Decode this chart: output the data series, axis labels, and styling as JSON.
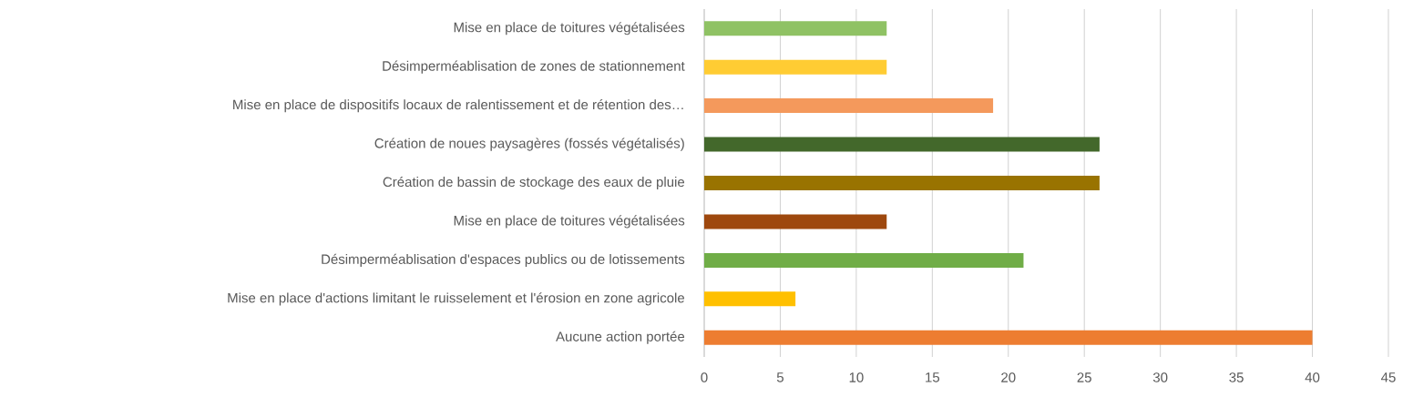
{
  "chart_data": {
    "type": "bar",
    "orientation": "horizontal",
    "categories": [
      "Mise en place de toitures végétalisées",
      "Désimperméablisation de zones de stationnement",
      "Mise en place de dispositifs locaux de ralentissement et de rétention des…",
      "Création de noues paysagères (fossés végétalisés)",
      "Création de bassin de stockage des eaux de pluie",
      "Mise en place de toitures végétalisées",
      "Désimperméablisation d'espaces publics ou de lotissements",
      "Mise en place d'actions limitant le ruisselement et l'érosion en zone agricole",
      "Aucune action portée"
    ],
    "values": [
      12,
      12,
      19,
      26,
      26,
      12,
      21,
      6,
      40
    ],
    "colors": [
      "#8fc264",
      "#ffcc33",
      "#f4995c",
      "#43682b",
      "#997300",
      "#9e480e",
      "#70ad47",
      "#ffc000",
      "#ed7d31"
    ],
    "xlim": [
      0,
      45
    ],
    "xticks": [
      0,
      5,
      10,
      15,
      20,
      25,
      30,
      35,
      40,
      45
    ],
    "grid": "x"
  }
}
